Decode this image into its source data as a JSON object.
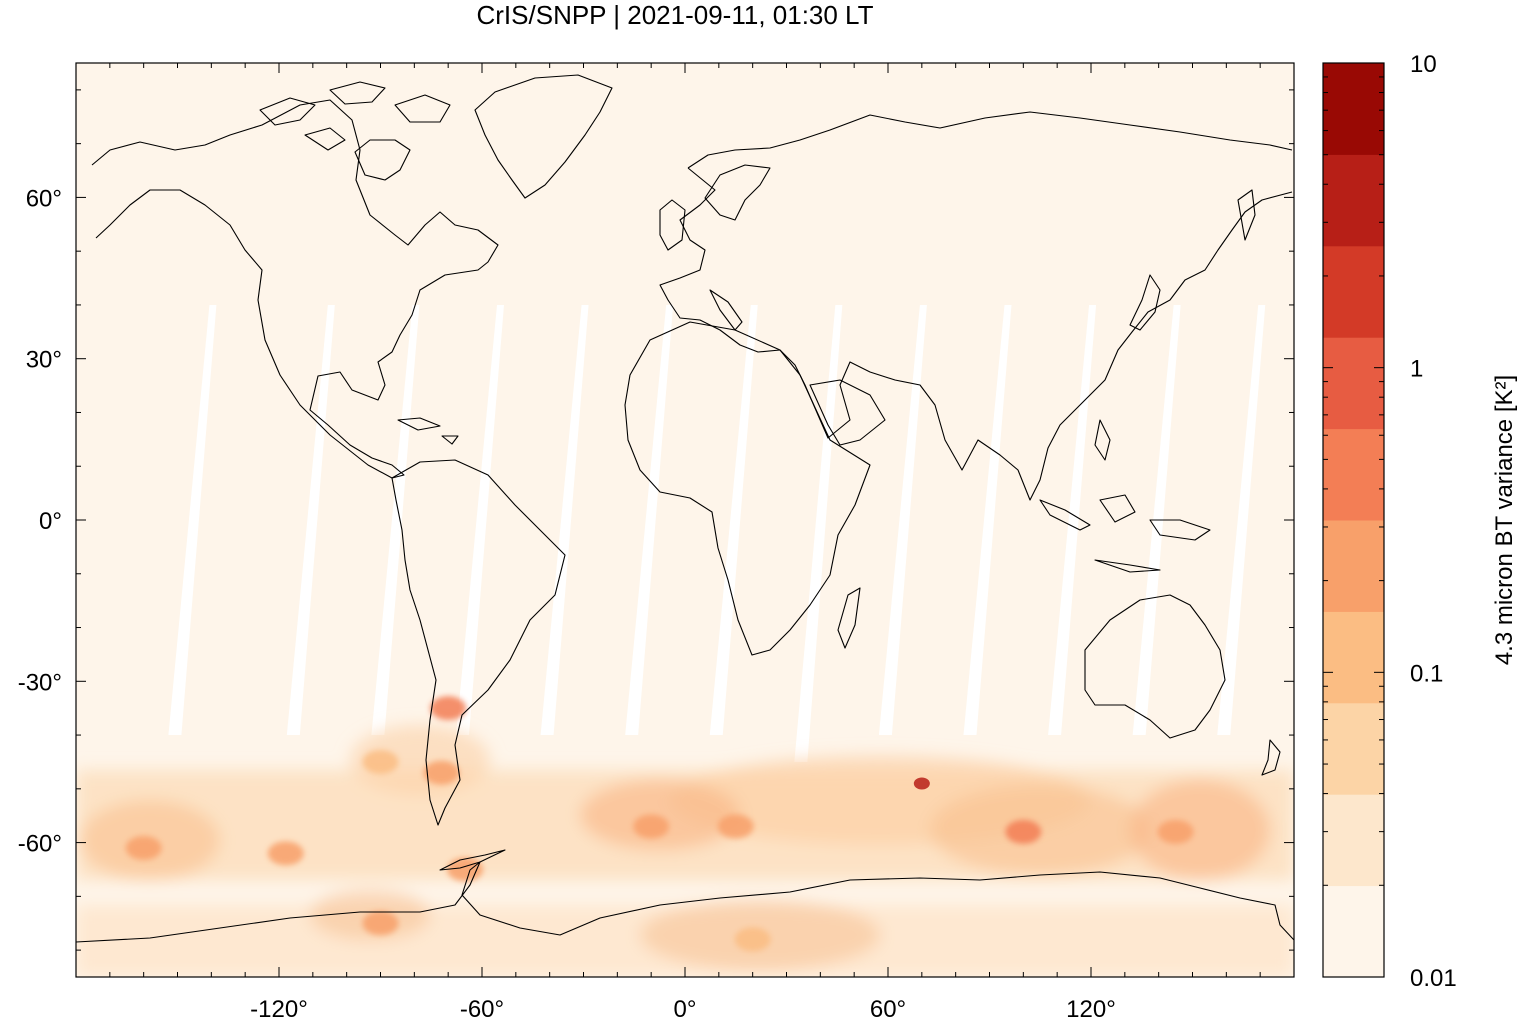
{
  "title": "CrIS/SNPP | 2021-09-11, 01:30 LT",
  "map": {
    "lon_range": [
      -180,
      180
    ],
    "lat_range": [
      -85,
      85
    ],
    "background_color": "#fef5ea",
    "gap_color": "#ffffff",
    "coastline_color": "#000000",
    "x_ticks": [
      -120,
      -60,
      0,
      60,
      120
    ],
    "x_tick_labels": [
      "-120°",
      "-60°",
      "0°",
      "60°",
      "120°"
    ],
    "y_ticks": [
      60,
      30,
      0,
      -30,
      -60
    ],
    "y_tick_labels": [
      "60°",
      "30°",
      "0°",
      "-30°",
      "-60°"
    ]
  },
  "colorbar": {
    "label": "4.3 micron BT variance [K²]",
    "scale": "log",
    "range": [
      0.01,
      10
    ],
    "tick_values": [
      10,
      1,
      0.1,
      0.01
    ],
    "tick_labels": [
      "10",
      "1",
      "0.1",
      "0.01"
    ],
    "colors": [
      "#fef5ea",
      "#fde7cc",
      "#fcd4a6",
      "#fbbd83",
      "#f8a06a",
      "#f37e55",
      "#e75c42",
      "#d33a27",
      "#b71f17",
      "#990904"
    ]
  },
  "chart_data": {
    "type": "heatmap",
    "title": "CrIS/SNPP | 2021-09-11, 01:30 LT",
    "xlabel": "",
    "ylabel": "",
    "xlim": [
      -180,
      180
    ],
    "ylim": [
      -85,
      85
    ],
    "colorbar_label": "4.3 micron BT variance [K²]",
    "colorbar_range": [
      0.01,
      10
    ],
    "colorbar_scale": "log",
    "swath_gaps": [
      {
        "lon": -145,
        "lat_top": 40,
        "lat_bottom": -40
      },
      {
        "lon": -110,
        "lat_top": 40,
        "lat_bottom": -40
      },
      {
        "lon": -85,
        "lat_top": 40,
        "lat_bottom": -40
      },
      {
        "lon": -60,
        "lat_top": 40,
        "lat_bottom": -40
      },
      {
        "lon": -35,
        "lat_top": 40,
        "lat_bottom": -40
      },
      {
        "lon": -10,
        "lat_top": 40,
        "lat_bottom": -40
      },
      {
        "lon": 15,
        "lat_top": 40,
        "lat_bottom": -40
      },
      {
        "lon": 40,
        "lat_top": 40,
        "lat_bottom": -45
      },
      {
        "lon": 65,
        "lat_top": 40,
        "lat_bottom": -40
      },
      {
        "lon": 90,
        "lat_top": 40,
        "lat_bottom": -40
      },
      {
        "lon": 115,
        "lat_top": 40,
        "lat_bottom": -40
      },
      {
        "lon": 140,
        "lat_top": 40,
        "lat_bottom": -40
      },
      {
        "lon": 165,
        "lat_top": 40,
        "lat_bottom": -40
      }
    ],
    "hotspots": [
      {
        "lon": -70,
        "lat": -35,
        "value": 0.6
      },
      {
        "lon": -72,
        "lat": -47,
        "value": 0.3
      },
      {
        "lon": -160,
        "lat": -61,
        "value": 0.3
      },
      {
        "lon": -118,
        "lat": -62,
        "value": 0.3
      },
      {
        "lon": -90,
        "lat": -45,
        "value": 0.1
      },
      {
        "lon": -65,
        "lat": -65,
        "value": 0.3
      },
      {
        "lon": -10,
        "lat": -57,
        "value": 0.3
      },
      {
        "lon": 15,
        "lat": -57,
        "value": 0.2
      },
      {
        "lon": 70,
        "lat": -49,
        "value": 5
      },
      {
        "lon": 100,
        "lat": -58,
        "value": 0.4
      },
      {
        "lon": 145,
        "lat": -58,
        "value": 0.3
      },
      {
        "lon": 20,
        "lat": -78,
        "value": 0.15
      },
      {
        "lon": -90,
        "lat": -75,
        "value": 0.2
      }
    ]
  }
}
